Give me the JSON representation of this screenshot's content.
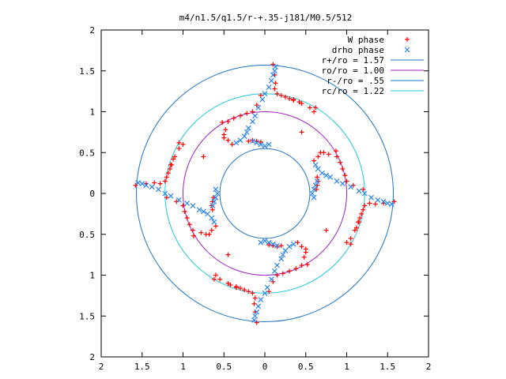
{
  "chart_data": {
    "type": "scatter",
    "title": "m4/n1.5/q1.5/r-+.35-j181/M0.5/512",
    "xlabel": "",
    "ylabel": "",
    "xlim": [
      -2,
      2
    ],
    "ylim": [
      -2,
      2
    ],
    "x_tick_labels": [
      "2",
      "1.5",
      "1",
      "0.5",
      "0",
      "0.5",
      "1",
      "1.5",
      "2"
    ],
    "x_tick_values": [
      -2,
      -1.5,
      -1,
      -0.5,
      0,
      0.5,
      1,
      1.5,
      2
    ],
    "y_tick_labels": [
      "2",
      "1.5",
      "1",
      "0.5",
      "0",
      "0.5",
      "1",
      "1.5",
      "2"
    ],
    "y_tick_values": [
      2,
      1.5,
      1,
      0.5,
      0,
      -0.5,
      -1,
      -1.5,
      -2
    ],
    "grid": false,
    "legend_position": "top-right",
    "symmetry_order": 4,
    "series": [
      {
        "name": "W phase",
        "marker": "plus",
        "color": "#ff0000",
        "points": [
          [
            0.1,
            1.58
          ],
          [
            0.12,
            1.45
          ],
          [
            0.13,
            1.35
          ],
          [
            0.12,
            1.28
          ],
          [
            0.15,
            1.22
          ],
          [
            0.2,
            1.2
          ],
          [
            0.25,
            1.18
          ],
          [
            0.3,
            1.16
          ],
          [
            0.35,
            1.14
          ],
          [
            0.42,
            1.12
          ],
          [
            0.55,
            1.05
          ],
          [
            0.62,
            1.05
          ],
          [
            -0.05,
            1.2
          ],
          [
            -0.1,
            1.08
          ],
          [
            -0.15,
            1.0
          ],
          [
            -0.22,
            0.98
          ],
          [
            -0.3,
            0.95
          ],
          [
            -0.38,
            0.92
          ],
          [
            -0.45,
            0.88
          ],
          [
            -0.52,
            0.87
          ],
          [
            -0.4,
            0.6
          ],
          [
            -0.45,
            0.65
          ],
          [
            -0.5,
            0.68
          ],
          [
            -0.5,
            0.72
          ],
          [
            -0.48,
            0.78
          ],
          [
            -0.05,
            0.63
          ],
          [
            -0.1,
            0.64
          ],
          [
            -0.15,
            0.65
          ],
          [
            -0.2,
            0.64
          ],
          [
            -1.0,
            0.6
          ],
          [
            -0.75,
            0.45
          ],
          [
            -1.1,
            0.45
          ],
          [
            -1.15,
            0.35
          ]
        ]
      },
      {
        "name": "drho phase",
        "marker": "cross",
        "color": "#2a84ea",
        "points": [
          [
            0.13,
            1.55
          ],
          [
            0.12,
            1.5
          ],
          [
            0.1,
            1.45
          ],
          [
            0.08,
            1.38
          ],
          [
            0.05,
            1.3
          ],
          [
            0.0,
            1.22
          ],
          [
            -0.03,
            1.15
          ],
          [
            -0.08,
            1.05
          ],
          [
            -0.12,
            0.95
          ],
          [
            -0.15,
            0.88
          ],
          [
            -0.2,
            0.8
          ],
          [
            -0.22,
            0.75
          ],
          [
            -0.25,
            0.7
          ],
          [
            -0.3,
            0.65
          ],
          [
            -0.35,
            0.62
          ],
          [
            -0.05,
            0.6
          ],
          [
            -0.1,
            0.62
          ],
          [
            -0.15,
            0.64
          ],
          [
            0.0,
            0.58
          ],
          [
            0.05,
            0.6
          ]
        ]
      }
    ],
    "reference_circles": [
      {
        "name": "r+/ro = 1.57",
        "radius": 1.57,
        "color": "#1f74c0"
      },
      {
        "name": "ro/ro = 1.00",
        "radius": 1.0,
        "color": "#a020c0"
      },
      {
        "name": "r-/ro = .55",
        "radius": 0.55,
        "color": "#1f74c0"
      },
      {
        "name": "rc/ro = 1.22",
        "radius": 1.22,
        "color": "#20c8d8"
      }
    ]
  }
}
